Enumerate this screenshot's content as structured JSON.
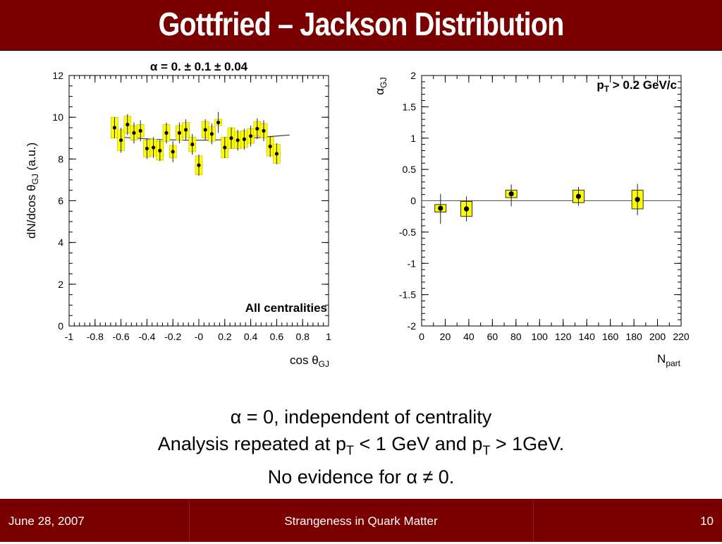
{
  "slide": {
    "title": "Gottfried – Jackson Distribution",
    "conclusion_lines": [
      {
        "pre": "α",
        "text": " = 0, independent of centrality"
      },
      {
        "text": "Analysis repeated at p",
        "sub1": "T",
        "mid": " < 1 GeV and p",
        "sub2": "T",
        "post": "  > 1GeV."
      },
      {
        "text": "No evidence for ",
        "greek": "α",
        "post": " ≠ 0."
      }
    ]
  },
  "footer": {
    "date": "June 28, 2007",
    "conference": "Strangeness in Quark Matter",
    "page": "10"
  },
  "colors": {
    "title_bg": "#7a0000",
    "footer_bg": "#7a0000",
    "box_fill": "#ffff00",
    "point": "#000000"
  },
  "chart_data": [
    {
      "type": "scatter",
      "title": "α = 0. ± 0.1 ± 0.04",
      "annotation": "All centralities",
      "xlabel": "cos θGJ",
      "ylabel": "dN/dcos θGJ (a.u.)",
      "xlim": [
        -1,
        1
      ],
      "ylim": [
        0,
        12
      ],
      "xticks": [
        "-1",
        "-0.8",
        "-0.6",
        "-0.4",
        "-0.2",
        "-0",
        "0.2",
        "0.4",
        "0.6",
        "0.8",
        "1"
      ],
      "yticks": [
        "0",
        "2",
        "4",
        "6",
        "8",
        "10",
        "12"
      ],
      "points": [
        {
          "x": -0.65,
          "y": 9.5,
          "stat": 0.5,
          "sys": 0.5
        },
        {
          "x": -0.6,
          "y": 8.9,
          "stat": 0.6,
          "sys": 0.5
        },
        {
          "x": -0.55,
          "y": 9.65,
          "stat": 0.5,
          "sys": 0.4
        },
        {
          "x": -0.5,
          "y": 9.25,
          "stat": 0.5,
          "sys": 0.35
        },
        {
          "x": -0.45,
          "y": 9.35,
          "stat": 0.5,
          "sys": 0.3
        },
        {
          "x": -0.4,
          "y": 8.5,
          "stat": 0.5,
          "sys": 0.4
        },
        {
          "x": -0.35,
          "y": 8.55,
          "stat": 0.5,
          "sys": 0.4
        },
        {
          "x": -0.3,
          "y": 8.4,
          "stat": 0.5,
          "sys": 0.45
        },
        {
          "x": -0.25,
          "y": 9.25,
          "stat": 0.5,
          "sys": 0.4
        },
        {
          "x": -0.2,
          "y": 8.35,
          "stat": 0.5,
          "sys": 0.3
        },
        {
          "x": -0.15,
          "y": 9.25,
          "stat": 0.5,
          "sys": 0.35
        },
        {
          "x": -0.1,
          "y": 9.4,
          "stat": 0.5,
          "sys": 0.35
        },
        {
          "x": -0.05,
          "y": 8.7,
          "stat": 0.5,
          "sys": 0.35
        },
        {
          "x": 0.0,
          "y": 7.7,
          "stat": 0.5,
          "sys": 0.45
        },
        {
          "x": 0.05,
          "y": 9.4,
          "stat": 0.5,
          "sys": 0.4
        },
        {
          "x": 0.1,
          "y": 9.2,
          "stat": 0.5,
          "sys": 0.35
        },
        {
          "x": 0.15,
          "y": 9.75,
          "stat": 0.5,
          "sys": 0.15
        },
        {
          "x": 0.2,
          "y": 8.55,
          "stat": 0.5,
          "sys": 0.5
        },
        {
          "x": 0.25,
          "y": 9.0,
          "stat": 0.5,
          "sys": 0.5
        },
        {
          "x": 0.3,
          "y": 8.9,
          "stat": 0.5,
          "sys": 0.4
        },
        {
          "x": 0.35,
          "y": 8.95,
          "stat": 0.5,
          "sys": 0.4
        },
        {
          "x": 0.4,
          "y": 9.1,
          "stat": 0.5,
          "sys": 0.35
        },
        {
          "x": 0.45,
          "y": 9.45,
          "stat": 0.5,
          "sys": 0.35
        },
        {
          "x": 0.5,
          "y": 9.35,
          "stat": 0.5,
          "sys": 0.35
        },
        {
          "x": 0.55,
          "y": 8.6,
          "stat": 0.5,
          "sys": 0.45
        },
        {
          "x": 0.6,
          "y": 8.25,
          "stat": 0.5,
          "sys": 0.45
        }
      ],
      "fit": [
        {
          "x": -0.68,
          "y": 9.1
        },
        {
          "x": -0.5,
          "y": 9.0
        },
        {
          "x": -0.3,
          "y": 8.93
        },
        {
          "x": -0.1,
          "y": 8.9
        },
        {
          "x": 0.0,
          "y": 8.9
        },
        {
          "x": 0.1,
          "y": 8.9
        },
        {
          "x": 0.3,
          "y": 8.95
        },
        {
          "x": 0.5,
          "y": 9.05
        },
        {
          "x": 0.7,
          "y": 9.15
        }
      ]
    },
    {
      "type": "scatter",
      "annotation": "pT > 0.2 GeV/c",
      "xlabel": "Npart",
      "ylabel": "αGJ",
      "xlim": [
        0,
        220
      ],
      "ylim": [
        -2,
        2
      ],
      "xticks": [
        "0",
        "20",
        "40",
        "60",
        "80",
        "100",
        "120",
        "140",
        "160",
        "180",
        "200",
        "220"
      ],
      "yticks": [
        "-2",
        "-1.5",
        "-1",
        "-0.5",
        "0",
        "0.5",
        "1",
        "1.5",
        "2"
      ],
      "points": [
        {
          "x": 16,
          "y": -0.12,
          "err_low": 0.25,
          "err_high": 0.23,
          "sys": 0.06
        },
        {
          "x": 38,
          "y": -0.13,
          "err_low": 0.2,
          "err_high": 0.2,
          "sys": 0.12
        },
        {
          "x": 76,
          "y": 0.11,
          "err_low": 0.2,
          "err_high": 0.15,
          "sys": 0.06
        },
        {
          "x": 133,
          "y": 0.07,
          "err_low": 0.15,
          "err_high": 0.15,
          "sys": 0.1
        },
        {
          "x": 183,
          "y": 0.02,
          "err_low": 0.25,
          "err_high": 0.25,
          "sys": 0.15
        }
      ],
      "reference_line": 0
    }
  ]
}
